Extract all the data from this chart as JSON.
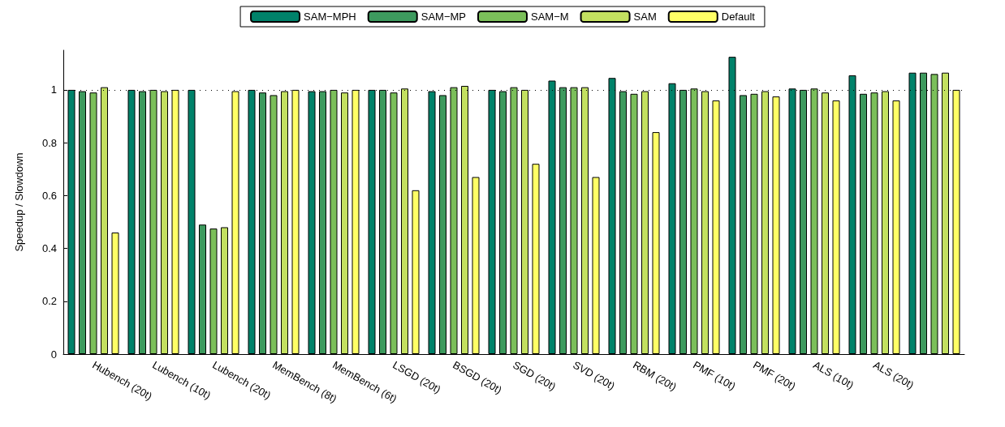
{
  "chart_data": {
    "type": "bar",
    "ylabel": "Speedup / Slowdown",
    "categories": [
      "Hubench (20t)",
      "Lubench (10t)",
      "Lubench (20t)",
      "MemBench (8t)",
      "MemBench (6t)",
      "LSGD (20t)",
      "BSGD (20t)",
      "SGD (20t)",
      "SVD (20t)",
      "RBM (20t)",
      "PMF (10t)",
      "PMF (20t)",
      "ALS (10t)",
      "ALS (20t)",
      null
    ],
    "series": [
      {
        "name": "SAM−MPH",
        "color": "#00826a",
        "values": [
          1.0,
          1.0,
          1.0,
          1.0,
          0.995,
          1.0,
          0.995,
          1.0,
          1.035,
          1.045,
          1.025,
          1.125,
          1.005,
          1.055,
          1.065
        ]
      },
      {
        "name": "SAM−MP",
        "color": "#3d9a5e",
        "values": [
          0.995,
          0.995,
          0.49,
          0.99,
          0.995,
          1.0,
          0.98,
          0.995,
          1.01,
          0.995,
          1.0,
          0.98,
          1.0,
          0.985,
          1.065
        ]
      },
      {
        "name": "SAM−M",
        "color": "#7bbf5a",
        "values": [
          0.99,
          1.0,
          0.475,
          0.98,
          1.0,
          0.99,
          1.01,
          1.01,
          1.01,
          0.985,
          1.005,
          0.985,
          1.005,
          0.99,
          1.06
        ]
      },
      {
        "name": "SAM",
        "color": "#c3e060",
        "values": [
          1.01,
          0.995,
          0.48,
          0.995,
          0.99,
          1.005,
          1.015,
          1.0,
          1.01,
          0.995,
          0.995,
          0.995,
          0.99,
          0.995,
          1.065
        ]
      },
      {
        "name": "Default",
        "color": "#ffff66",
        "values": [
          0.46,
          1.0,
          0.995,
          1.0,
          1.0,
          0.62,
          0.67,
          0.72,
          0.67,
          0.84,
          0.96,
          0.975,
          0.96,
          0.96,
          1.0
        ]
      }
    ],
    "ylim": [
      0,
      1.15
    ],
    "yticks": [
      0,
      0.2,
      0.4,
      0.6,
      0.8,
      1
    ],
    "ref_lines": [
      {
        "axis": "y",
        "value": 1,
        "color": "#000000",
        "line_style": "dotted"
      }
    ],
    "grid": false,
    "legend": "top"
  }
}
